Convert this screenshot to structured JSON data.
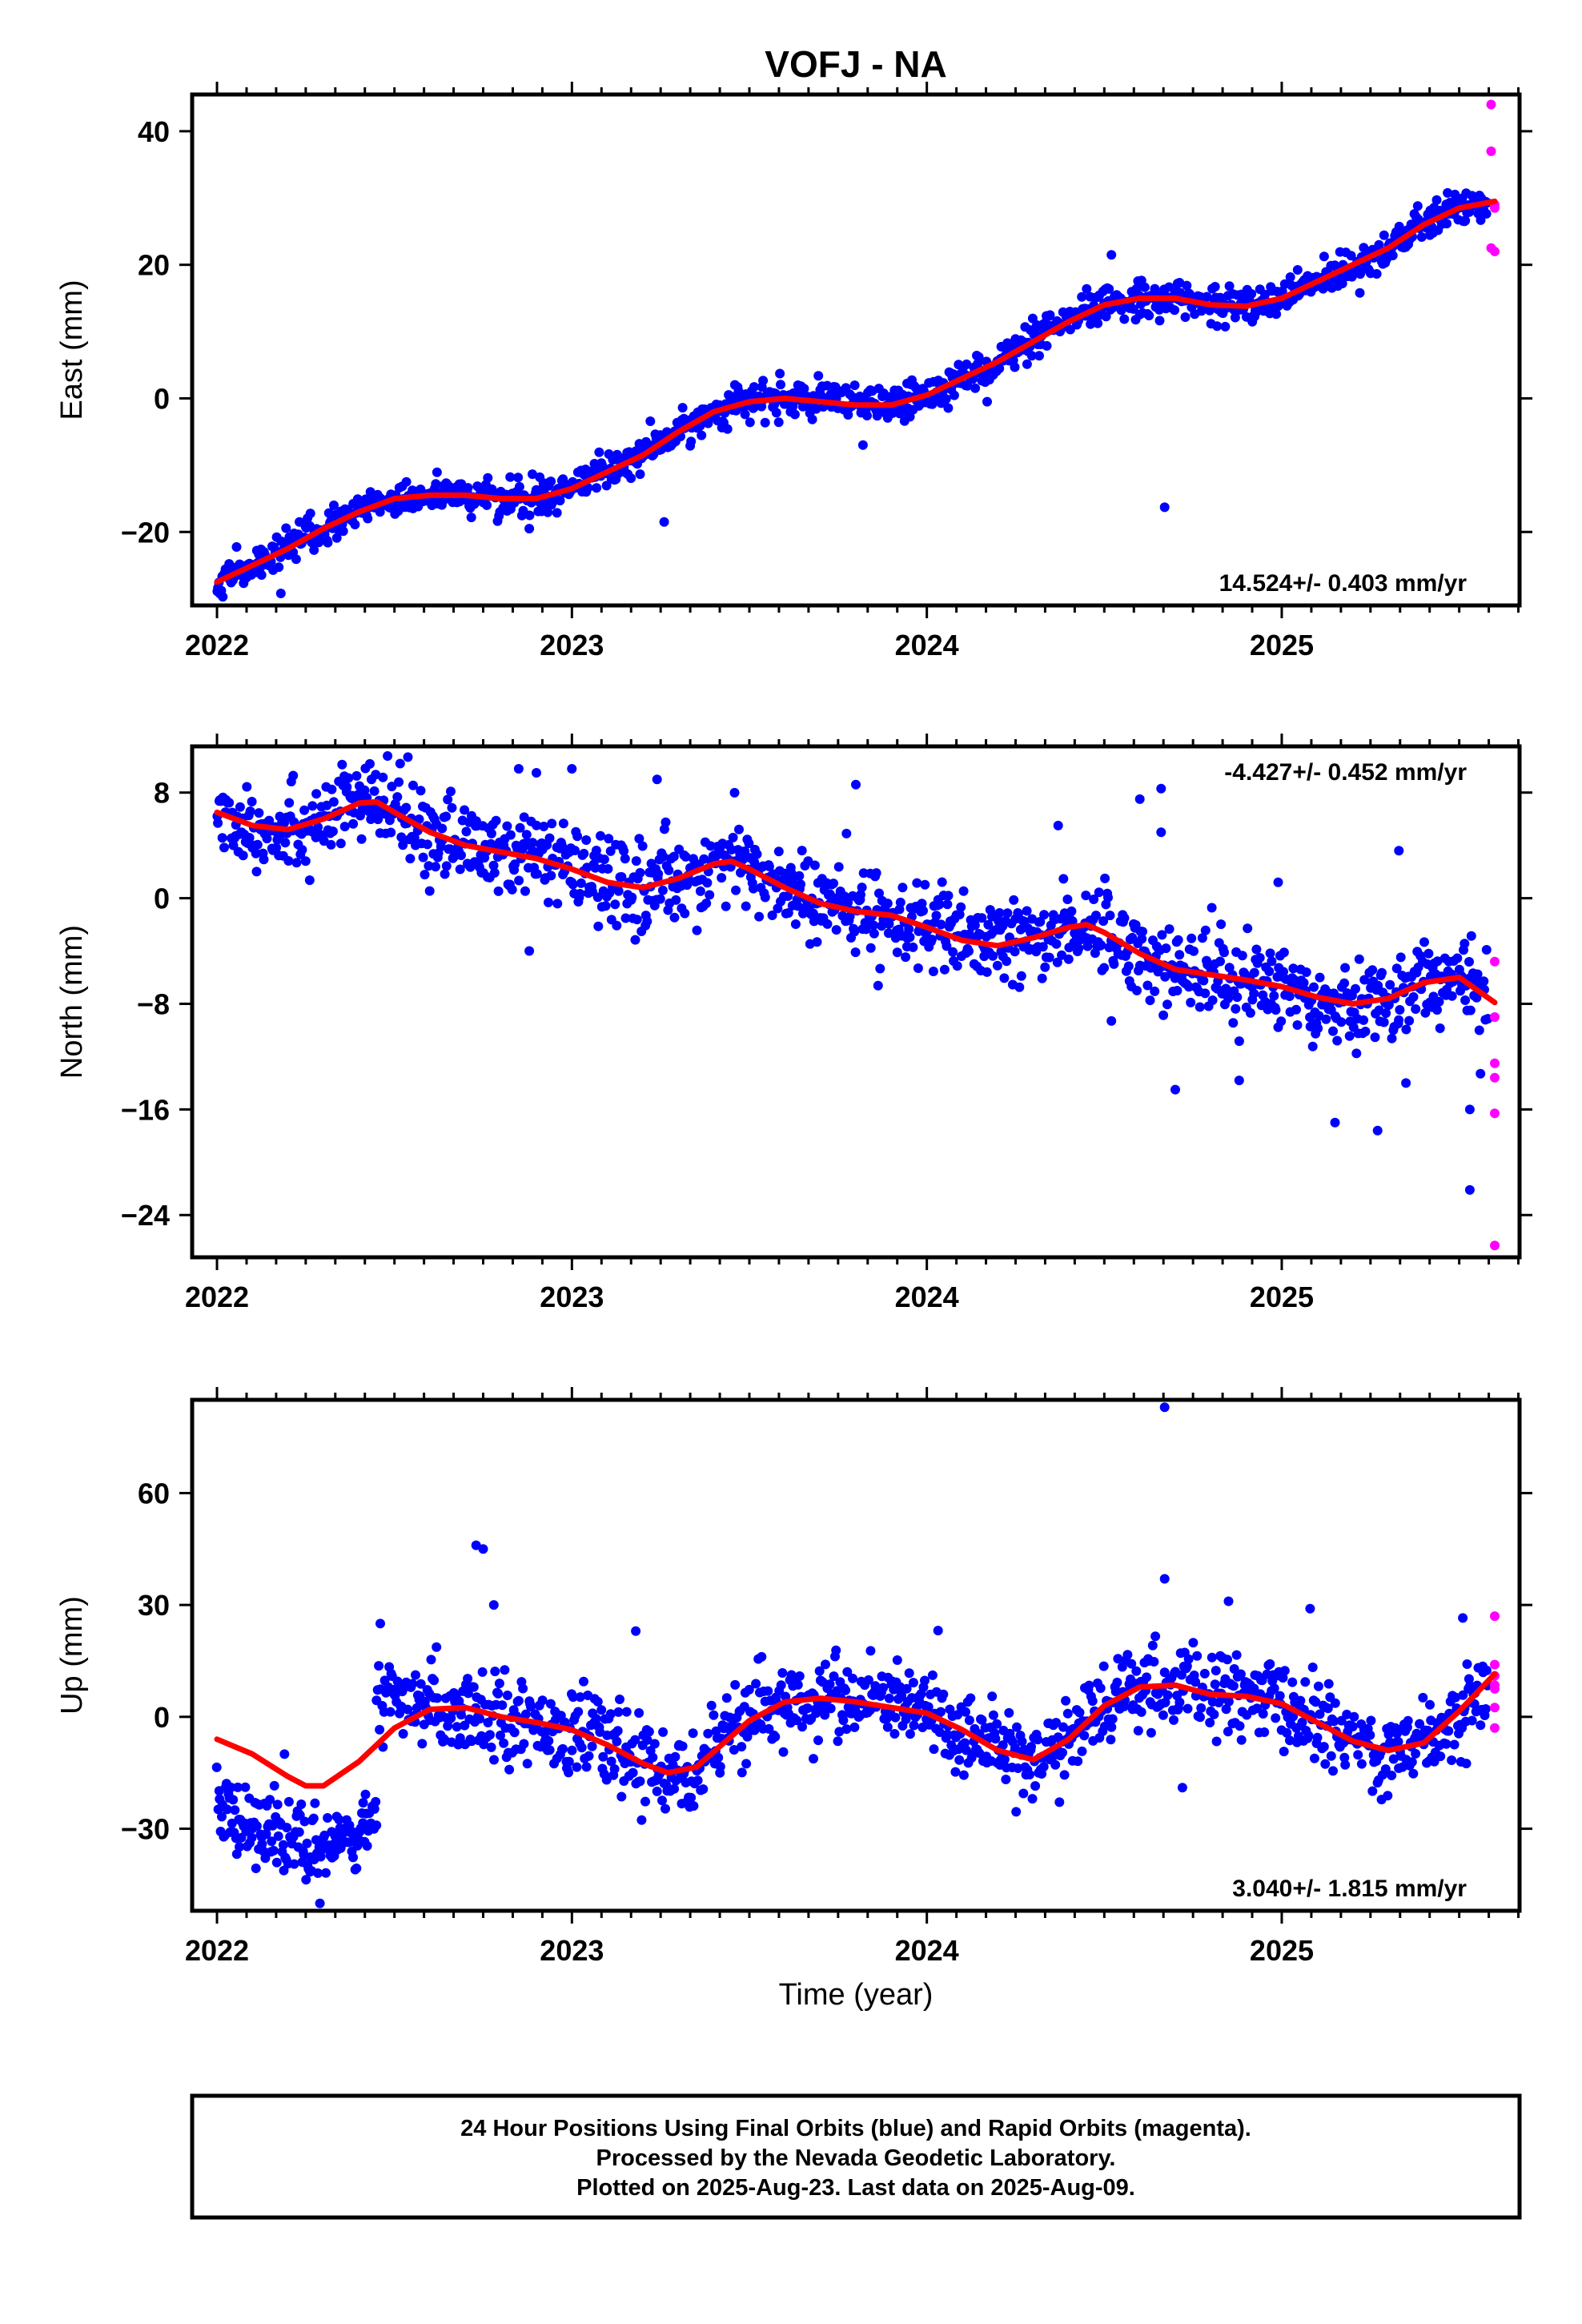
{
  "title": "VOFJ - NA",
  "xlabel": "Time (year)",
  "colors": {
    "final": "#0000ff",
    "rapid": "#ff00ff",
    "fit": "#ff0000",
    "frame": "#000000"
  },
  "footer": {
    "line1": "24 Hour Positions Using Final Orbits (blue) and Rapid Orbits (magenta).",
    "line2": "Processed by the Nevada Geodetic Laboratory.",
    "line3": "Plotted on 2025-Aug-23. Last data on 2025-Aug-09."
  },
  "chart_data": [
    {
      "type": "scatter",
      "component": "east",
      "ylabel": "East (mm)",
      "rate_text": "14.524+/- 0.403 mm/yr",
      "xlim": [
        2021.93,
        2025.67
      ],
      "ylim": [
        -31,
        45.5
      ],
      "xticks": [
        2022,
        2023,
        2024,
        2025
      ],
      "xtick_labels": [
        "2022",
        "2023",
        "2024",
        "2025"
      ],
      "yticks": [
        -20,
        0,
        20,
        40
      ],
      "ytick_labels": [
        "−20",
        "0",
        "20",
        "40"
      ],
      "fit_curve": {
        "x": [
          2022.0,
          2022.1,
          2022.2,
          2022.3,
          2022.4,
          2022.5,
          2022.6,
          2022.7,
          2022.8,
          2022.9,
          2023.0,
          2023.1,
          2023.2,
          2023.3,
          2023.4,
          2023.5,
          2023.6,
          2023.7,
          2023.8,
          2023.9,
          2024.0,
          2024.1,
          2024.2,
          2024.3,
          2024.4,
          2024.5,
          2024.6,
          2024.7,
          2024.8,
          2024.9,
          2025.0,
          2025.1,
          2025.2,
          2025.3,
          2025.4,
          2025.5,
          2025.6
        ],
        "y": [
          -27.5,
          -25,
          -22.5,
          -19.5,
          -17,
          -15,
          -14.5,
          -14.5,
          -15,
          -15,
          -13.5,
          -11,
          -8.5,
          -5,
          -2,
          -0.5,
          0,
          -0.5,
          -1,
          -1,
          0.5,
          3,
          5.5,
          8.5,
          11.5,
          14,
          15,
          15,
          14,
          13.8,
          15,
          17.5,
          20,
          22.5,
          26,
          28.5,
          29.5
        ]
      },
      "final_series": {
        "anchors_x": [
          2022.0,
          2022.1,
          2022.2,
          2022.3,
          2022.4,
          2022.5,
          2022.6,
          2022.7,
          2022.8,
          2022.9,
          2023.0,
          2023.1,
          2023.2,
          2023.3,
          2023.4,
          2023.5,
          2023.6,
          2023.7,
          2023.8,
          2023.9,
          2024.0,
          2024.1,
          2024.2,
          2024.3,
          2024.4,
          2024.5,
          2024.6,
          2024.7,
          2024.8,
          2024.9,
          2025.0,
          2025.1,
          2025.2,
          2025.3,
          2025.4,
          2025.5,
          2025.58
        ],
        "anchors_y": [
          -27.5,
          -25,
          -22.5,
          -19.5,
          -17,
          -15,
          -14.5,
          -14.5,
          -15,
          -15,
          -13.5,
          -11,
          -8.5,
          -5,
          -2,
          -0.5,
          0,
          -0.5,
          -1,
          -1,
          0.5,
          3,
          5.5,
          8.5,
          11.5,
          14,
          15,
          15,
          14,
          13.8,
          15,
          17.5,
          20,
          22.5,
          26,
          28.5,
          29.2
        ],
        "x_start": 2022.0,
        "x_end": 2025.58,
        "count": 1250,
        "scatter": 1.3,
        "outliers": [
          [
            2024.67,
            -16.3
          ],
          [
            2022.18,
            -29.2
          ],
          [
            2022.88,
            -19.5
          ],
          [
            2023.26,
            -18.5
          ],
          [
            2024.17,
            -0.5
          ],
          [
            2025.22,
            15.8
          ],
          [
            2023.82,
            -7.0
          ],
          [
            2024.52,
            21.5
          ]
        ]
      },
      "rapid_points": [
        [
          2025.59,
          44
        ],
        [
          2025.59,
          37
        ],
        [
          2025.6,
          29
        ],
        [
          2025.6,
          28.5
        ],
        [
          2025.59,
          22.5
        ],
        [
          2025.6,
          22
        ]
      ]
    },
    {
      "type": "scatter",
      "component": "north",
      "ylabel": "North (mm)",
      "rate_text": "-4.427+/- 0.452 mm/yr",
      "xlim": [
        2021.93,
        2025.67
      ],
      "ylim": [
        -27.2,
        11.5
      ],
      "xticks": [
        2022,
        2023,
        2024,
        2025
      ],
      "xtick_labels": [
        "2022",
        "2023",
        "2024",
        "2025"
      ],
      "yticks": [
        -24,
        -16,
        -8,
        0,
        8
      ],
      "ytick_labels": [
        "−24",
        "−16",
        "−8",
        "0",
        "8"
      ],
      "fit_curve": {
        "x": [
          2022.0,
          2022.1,
          2022.2,
          2022.3,
          2022.4,
          2022.45,
          2022.5,
          2022.6,
          2022.7,
          2022.8,
          2022.9,
          2023.0,
          2023.1,
          2023.2,
          2023.3,
          2023.4,
          2023.45,
          2023.5,
          2023.6,
          2023.7,
          2023.8,
          2023.9,
          2024.0,
          2024.1,
          2024.2,
          2024.3,
          2024.4,
          2024.45,
          2024.5,
          2024.6,
          2024.7,
          2024.8,
          2024.9,
          2025.0,
          2025.1,
          2025.2,
          2025.3,
          2025.4,
          2025.5,
          2025.6
        ],
        "y": [
          6.5,
          5.5,
          5.2,
          6,
          7.2,
          7.3,
          6.5,
          5,
          4,
          3.5,
          3,
          2.2,
          1.2,
          0.8,
          1.5,
          2.6,
          2.8,
          2.2,
          0.8,
          -0.4,
          -1,
          -1.3,
          -2.2,
          -3.2,
          -3.6,
          -3,
          -2.2,
          -2,
          -2.6,
          -4.2,
          -5.4,
          -5.8,
          -6.2,
          -6.7,
          -7.5,
          -8,
          -7.6,
          -6.4,
          -6,
          -7.9
        ]
      },
      "final_series": {
        "anchors_x": [
          2022.0,
          2022.1,
          2022.2,
          2022.3,
          2022.4,
          2022.45,
          2022.5,
          2022.6,
          2022.7,
          2022.8,
          2022.9,
          2023.0,
          2023.1,
          2023.2,
          2023.3,
          2023.4,
          2023.45,
          2023.5,
          2023.6,
          2023.7,
          2023.8,
          2023.9,
          2024.0,
          2024.1,
          2024.2,
          2024.3,
          2024.4,
          2024.45,
          2024.5,
          2024.6,
          2024.7,
          2024.8,
          2024.9,
          2025.0,
          2025.1,
          2025.2,
          2025.3,
          2025.4,
          2025.5,
          2025.58
        ],
        "anchors_y": [
          6.5,
          5.5,
          5.2,
          6,
          7.2,
          7.3,
          6.5,
          5,
          4,
          3.5,
          3,
          2.2,
          1.2,
          0.8,
          1.5,
          2.6,
          2.8,
          2.2,
          0.8,
          -0.4,
          -1,
          -1.3,
          -2.2,
          -3.2,
          -3.6,
          -3,
          -2.2,
          -2,
          -2.6,
          -4.2,
          -5.4,
          -5.8,
          -6.2,
          -6.7,
          -7.5,
          -8,
          -7.6,
          -6.4,
          -6,
          -7.5
        ],
        "x_start": 2022.0,
        "x_end": 2025.58,
        "count": 1250,
        "scatter": 1.6,
        "outliers": [
          [
            2023.0,
            9.8
          ],
          [
            2022.85,
            9.8
          ],
          [
            2022.9,
            9.5
          ],
          [
            2023.24,
            9.0
          ],
          [
            2023.8,
            8.6
          ],
          [
            2022.88,
            -4.0
          ],
          [
            2024.37,
            5.5
          ],
          [
            2024.6,
            7.5
          ],
          [
            2024.66,
            8.3
          ],
          [
            2024.66,
            5.0
          ],
          [
            2025.33,
            3.6
          ],
          [
            2024.7,
            -14.5
          ],
          [
            2024.88,
            -13.8
          ],
          [
            2024.99,
            1.2
          ],
          [
            2025.15,
            -17.0
          ],
          [
            2025.27,
            -17.6
          ],
          [
            2025.35,
            -14.0
          ],
          [
            2025.53,
            -22.1
          ],
          [
            2025.53,
            -16.0
          ],
          [
            2025.56,
            -13.3
          ],
          [
            2024.52,
            -9.3
          ]
        ]
      },
      "rapid_points": [
        [
          2025.6,
          -4.8
        ],
        [
          2025.6,
          -9.0
        ],
        [
          2025.6,
          -12.5
        ],
        [
          2025.6,
          -13.6
        ],
        [
          2025.6,
          -16.3
        ],
        [
          2025.6,
          -26.3
        ]
      ]
    },
    {
      "type": "scatter",
      "component": "up",
      "ylabel": "Up (mm)",
      "rate_text": "3.040+/- 1.815 mm/yr",
      "xlim": [
        2021.93,
        2025.67
      ],
      "ylim": [
        -52,
        85
      ],
      "xticks": [
        2022,
        2023,
        2024,
        2025
      ],
      "xtick_labels": [
        "2022",
        "2023",
        "2024",
        "2025"
      ],
      "yticks": [
        -30,
        0,
        30,
        60
      ],
      "ytick_labels": [
        "−30",
        "0",
        "30",
        "60"
      ],
      "fit_curve": {
        "x": [
          2022.0,
          2022.1,
          2022.2,
          2022.25,
          2022.3,
          2022.4,
          2022.5,
          2022.6,
          2022.7,
          2022.8,
          2022.9,
          2023.0,
          2023.1,
          2023.2,
          2023.27,
          2023.35,
          2023.5,
          2023.6,
          2023.7,
          2023.8,
          2023.9,
          2024.0,
          2024.1,
          2024.2,
          2024.3,
          2024.4,
          2024.5,
          2024.6,
          2024.7,
          2024.8,
          2024.9,
          2025.0,
          2025.1,
          2025.2,
          2025.3,
          2025.4,
          2025.5,
          2025.6
        ],
        "y": [
          -6,
          -10,
          -16,
          -18.5,
          -18.5,
          -12,
          -3,
          2,
          2.5,
          0,
          -1.5,
          -3.5,
          -7.5,
          -12.5,
          -15,
          -13.5,
          -1,
          4,
          5,
          4,
          2.5,
          1,
          -3.5,
          -9,
          -11.5,
          -6,
          3,
          8,
          8.5,
          6,
          5.5,
          3.5,
          -1.5,
          -6.5,
          -9,
          -7,
          1.5,
          11.5
        ]
      },
      "final_series": {
        "segments": [
          {
            "x_start": 2022.0,
            "x_end": 2022.45,
            "anchors_x": [
              2022.0,
              2022.15,
              2022.25,
              2022.35,
              2022.45
            ],
            "anchors_y": [
              -24,
              -30,
              -36,
              -33,
              -27
            ],
            "count": 170,
            "scatter": 4.5
          },
          {
            "x_start": 2022.45,
            "x_end": 2025.58,
            "anchors_x": [
              2022.45,
              2022.6,
              2022.7,
              2022.8,
              2022.9,
              2023.0,
              2023.1,
              2023.2,
              2023.27,
              2023.35,
              2023.5,
              2023.6,
              2023.7,
              2023.8,
              2023.9,
              2024.0,
              2024.1,
              2024.2,
              2024.3,
              2024.4,
              2024.5,
              2024.6,
              2024.7,
              2024.8,
              2024.9,
              2025.0,
              2025.1,
              2025.2,
              2025.3,
              2025.4,
              2025.5,
              2025.58
            ],
            "anchors_y": [
              3,
              3,
              2.5,
              0,
              -1.5,
              -3.5,
              -7.5,
              -12.5,
              -15,
              -13.5,
              -1,
              4,
              5,
              4,
              4,
              1,
              -3.5,
              -9,
              -11.5,
              -6,
              3,
              8,
              8.5,
              6,
              5.5,
              3.5,
              -1.5,
              -6.5,
              -9,
              -7,
              1.5,
              10
            ],
            "count": 1080,
            "scatter": 5.5
          }
        ],
        "outliers": [
          [
            2024.67,
            83
          ],
          [
            2022.73,
            46
          ],
          [
            2022.75,
            45
          ],
          [
            2024.67,
            37
          ],
          [
            2022.78,
            30
          ],
          [
            2022.46,
            25
          ],
          [
            2024.85,
            31
          ],
          [
            2025.08,
            29
          ],
          [
            2024.72,
            -19
          ],
          [
            2023.18,
            23
          ],
          [
            2022.19,
            -10
          ],
          [
            2022.29,
            -50
          ],
          [
            2025.51,
            26.5
          ],
          [
            2025.52,
            -12.5
          ]
        ]
      },
      "rapid_points": [
        [
          2025.6,
          27
        ],
        [
          2025.6,
          14
        ],
        [
          2025.6,
          11
        ],
        [
          2025.6,
          8.5
        ],
        [
          2025.6,
          7.5
        ],
        [
          2025.6,
          2.5
        ],
        [
          2025.6,
          -3
        ]
      ]
    }
  ]
}
